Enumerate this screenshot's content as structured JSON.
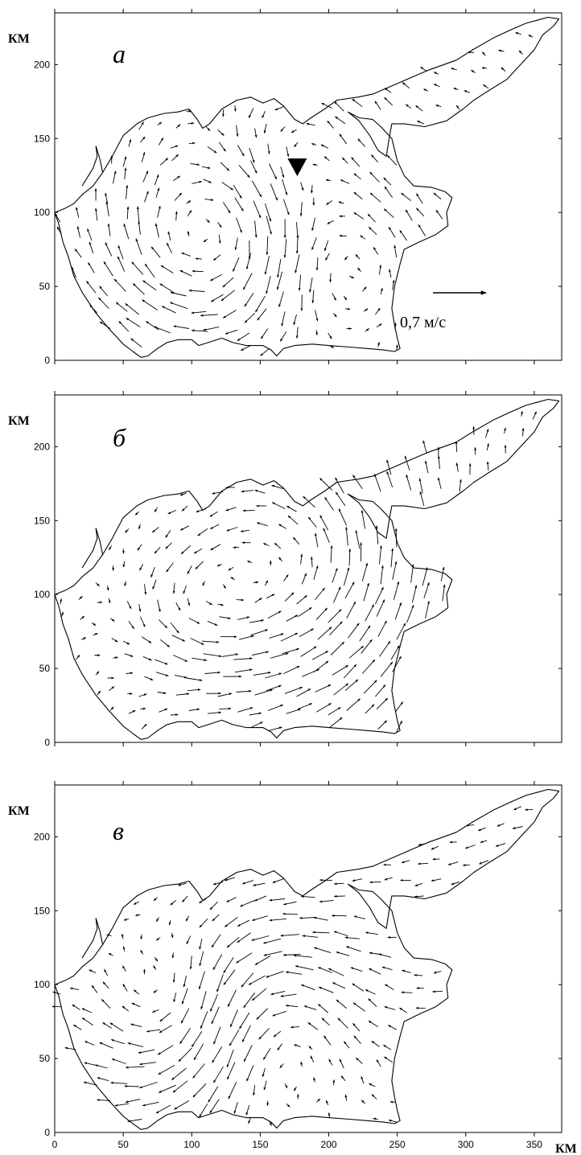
{
  "chart_data": [
    {
      "type": "vector-field",
      "panel_label": "а",
      "ylabel": "КМ",
      "xlim": [
        0,
        370
      ],
      "ylim": [
        0,
        235
      ],
      "yticks": [
        0,
        50,
        100,
        150,
        200
      ],
      "xticks": [
        0,
        50,
        100,
        150,
        200,
        250,
        300,
        350
      ],
      "show_x_tick_labels": false,
      "scale_arrow_label": "0,7 м/с",
      "scale_arrow_speed": 0.7,
      "marker": {
        "shape": "triangle-down",
        "x": 177,
        "y": 130
      },
      "circulation": [
        {
          "cx": 110,
          "cy": 80,
          "sense": "cw",
          "strength": 0.45,
          "radius": 75
        },
        {
          "cx": 210,
          "cy": 70,
          "sense": "ccw",
          "strength": 0.35,
          "radius": 60
        },
        {
          "cx": 175,
          "cy": 150,
          "sense": "ccw",
          "strength": 0.3,
          "radius": 55
        }
      ],
      "background_flow": [
        -0.1,
        0.05
      ]
    },
    {
      "type": "vector-field",
      "panel_label": "б",
      "ylabel": "КМ",
      "xlim": [
        0,
        370
      ],
      "ylim": [
        0,
        235
      ],
      "yticks": [
        0,
        50,
        100,
        150,
        200
      ],
      "xticks": [
        0,
        50,
        100,
        150,
        200,
        250,
        300,
        350
      ],
      "show_x_tick_labels": false,
      "circulation": [
        {
          "cx": 175,
          "cy": 115,
          "sense": "ccw",
          "strength": 0.5,
          "radius": 90
        },
        {
          "cx": 100,
          "cy": 90,
          "sense": "ccw",
          "strength": 0.25,
          "radius": 50
        }
      ],
      "background_flow": [
        0.05,
        0.15
      ]
    },
    {
      "type": "vector-field",
      "panel_label": "в",
      "ylabel": "КМ",
      "xlabel": "КМ",
      "xlim": [
        0,
        370
      ],
      "ylim": [
        0,
        235
      ],
      "yticks": [
        0,
        50,
        100,
        150,
        200
      ],
      "xticks": [
        0,
        50,
        100,
        150,
        200,
        250,
        300,
        350
      ],
      "show_x_tick_labels": true,
      "circulation": [
        {
          "cx": 90,
          "cy": 80,
          "sense": "cw",
          "strength": 0.45,
          "radius": 55
        },
        {
          "cx": 160,
          "cy": 70,
          "sense": "ccw",
          "strength": 0.4,
          "radius": 70
        }
      ],
      "background_flow": [
        -0.2,
        -0.05
      ]
    }
  ],
  "coastline_km": [
    [
      0,
      100
    ],
    [
      3,
      92
    ],
    [
      6,
      80
    ],
    [
      10,
      70
    ],
    [
      14,
      57
    ],
    [
      20,
      46
    ],
    [
      30,
      32
    ],
    [
      40,
      21
    ],
    [
      50,
      11
    ],
    [
      57,
      6
    ],
    [
      63,
      2
    ],
    [
      68,
      3
    ],
    [
      75,
      8
    ],
    [
      82,
      12
    ],
    [
      90,
      14
    ],
    [
      100,
      14
    ],
    [
      105,
      10
    ],
    [
      112,
      12
    ],
    [
      122,
      15
    ],
    [
      130,
      12
    ],
    [
      140,
      10
    ],
    [
      152,
      10
    ],
    [
      158,
      7
    ],
    [
      162,
      3
    ],
    [
      167,
      8
    ],
    [
      175,
      10
    ],
    [
      188,
      11
    ],
    [
      200,
      10
    ],
    [
      215,
      9
    ],
    [
      228,
      8
    ],
    [
      240,
      7
    ],
    [
      248,
      6
    ],
    [
      252,
      8
    ],
    [
      250,
      15
    ],
    [
      248,
      24
    ],
    [
      246,
      35
    ],
    [
      248,
      50
    ],
    [
      252,
      65
    ],
    [
      255,
      75
    ],
    [
      266,
      80
    ],
    [
      278,
      85
    ],
    [
      287,
      91
    ],
    [
      286,
      100
    ],
    [
      290,
      110
    ],
    [
      285,
      114
    ],
    [
      275,
      117
    ],
    [
      262,
      118
    ],
    [
      255,
      125
    ],
    [
      250,
      135
    ],
    [
      246,
      150
    ],
    [
      238,
      158
    ],
    [
      232,
      163
    ],
    [
      222,
      164
    ],
    [
      214,
      168
    ],
    [
      222,
      162
    ],
    [
      230,
      152
    ],
    [
      236,
      142
    ],
    [
      242,
      138
    ],
    [
      244,
      150
    ],
    [
      246,
      160
    ],
    [
      255,
      160
    ],
    [
      270,
      158
    ],
    [
      286,
      162
    ],
    [
      298,
      170
    ],
    [
      306,
      176
    ],
    [
      316,
      182
    ],
    [
      330,
      190
    ],
    [
      340,
      200
    ],
    [
      350,
      210
    ],
    [
      356,
      220
    ],
    [
      364,
      226
    ],
    [
      368,
      231
    ],
    [
      360,
      232
    ],
    [
      352,
      230
    ],
    [
      344,
      228
    ],
    [
      334,
      224
    ],
    [
      320,
      218
    ],
    [
      305,
      210
    ],
    [
      293,
      203
    ],
    [
      284,
      200
    ],
    [
      272,
      196
    ],
    [
      262,
      192
    ],
    [
      252,
      188
    ],
    [
      242,
      184
    ],
    [
      232,
      180
    ],
    [
      221,
      178
    ],
    [
      206,
      176
    ],
    [
      197,
      170
    ],
    [
      187,
      164
    ],
    [
      181,
      160
    ],
    [
      175,
      163
    ],
    [
      167,
      172
    ],
    [
      160,
      177
    ],
    [
      152,
      174
    ],
    [
      143,
      178
    ],
    [
      133,
      176
    ],
    [
      122,
      170
    ],
    [
      113,
      160
    ],
    [
      108,
      157
    ],
    [
      104,
      163
    ],
    [
      98,
      170
    ],
    [
      90,
      168
    ],
    [
      80,
      167
    ],
    [
      68,
      164
    ],
    [
      60,
      160
    ],
    [
      50,
      152
    ],
    [
      42,
      138
    ],
    [
      35,
      127
    ],
    [
      28,
      118
    ],
    [
      20,
      112
    ],
    [
      14,
      106
    ],
    [
      8,
      103
    ],
    [
      0,
      100
    ]
  ],
  "peninsula_km": [
    [
      20,
      118
    ],
    [
      24,
      124
    ],
    [
      28,
      130
    ],
    [
      31,
      138
    ],
    [
      30,
      145
    ],
    [
      33,
      136
    ],
    [
      35,
      127
    ]
  ]
}
